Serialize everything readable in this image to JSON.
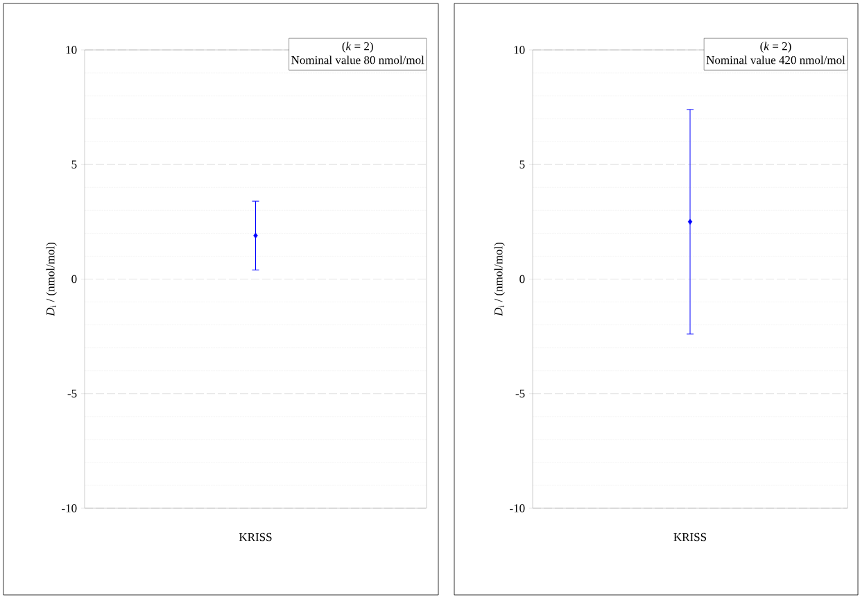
{
  "chart_data": [
    {
      "type": "scatter",
      "ylabel": "*D*$_{i}$ / (nmol/mol)",
      "categories": [
        "KRISS"
      ],
      "values": [
        1.9
      ],
      "errors": [
        1.5
      ],
      "color": "#0000ff",
      "marker": "diamond",
      "ylim": [
        -10,
        10
      ],
      "yticks": [
        {
          "value": -10,
          "label": "-10"
        },
        {
          "value": -9,
          "label": null
        },
        {
          "value": -8,
          "label": null
        },
        {
          "value": -7,
          "label": null
        },
        {
          "value": -6,
          "label": null
        },
        {
          "value": -5,
          "label": "-5"
        },
        {
          "value": -4,
          "label": null
        },
        {
          "value": -3,
          "label": null
        },
        {
          "value": -2,
          "label": null
        },
        {
          "value": -1,
          "label": null
        },
        0,
        {
          "value": 1,
          "label": null
        },
        {
          "value": 2,
          "label": null
        },
        {
          "value": 3,
          "label": null
        },
        {
          "value": 4,
          "label": null
        },
        5,
        {
          "value": 6,
          "label": null
        },
        {
          "value": 7,
          "label": null
        },
        {
          "value": 8,
          "label": null
        },
        {
          "value": 9,
          "label": null
        },
        10
      ],
      "grid": "y",
      "annotations": [
        "(*k* = 2)",
        "Nominal value 80 nmol/mol"
      ]
    },
    {
      "type": "scatter",
      "ylabel": "*D*$_{i}$ / (nmol/mol)",
      "categories": [
        "KRISS"
      ],
      "values": [
        2.5
      ],
      "errors": [
        4.9
      ],
      "color": "#0000ff",
      "marker": "diamond",
      "ylim": [
        -10,
        10
      ],
      "yticks": [
        {
          "value": -10,
          "label": "-10"
        },
        {
          "value": -9,
          "label": null
        },
        {
          "value": -8,
          "label": null
        },
        {
          "value": -7,
          "label": null
        },
        {
          "value": -6,
          "label": null
        },
        {
          "value": -5,
          "label": "-5"
        },
        {
          "value": -4,
          "label": null
        },
        {
          "value": -3,
          "label": null
        },
        {
          "value": -2,
          "label": null
        },
        {
          "value": -1,
          "label": null
        },
        0,
        {
          "value": 1,
          "label": null
        },
        {
          "value": 2,
          "label": null
        },
        {
          "value": 3,
          "label": null
        },
        {
          "value": 4,
          "label": null
        },
        5,
        {
          "value": 6,
          "label": null
        },
        {
          "value": 7,
          "label": null
        },
        {
          "value": 8,
          "label": null
        },
        {
          "value": 9,
          "label": null
        },
        10
      ],
      "grid": "y",
      "annotations": [
        "(*k* = 2)",
        "Nominal value 420 nmol/mol"
      ]
    }
  ]
}
